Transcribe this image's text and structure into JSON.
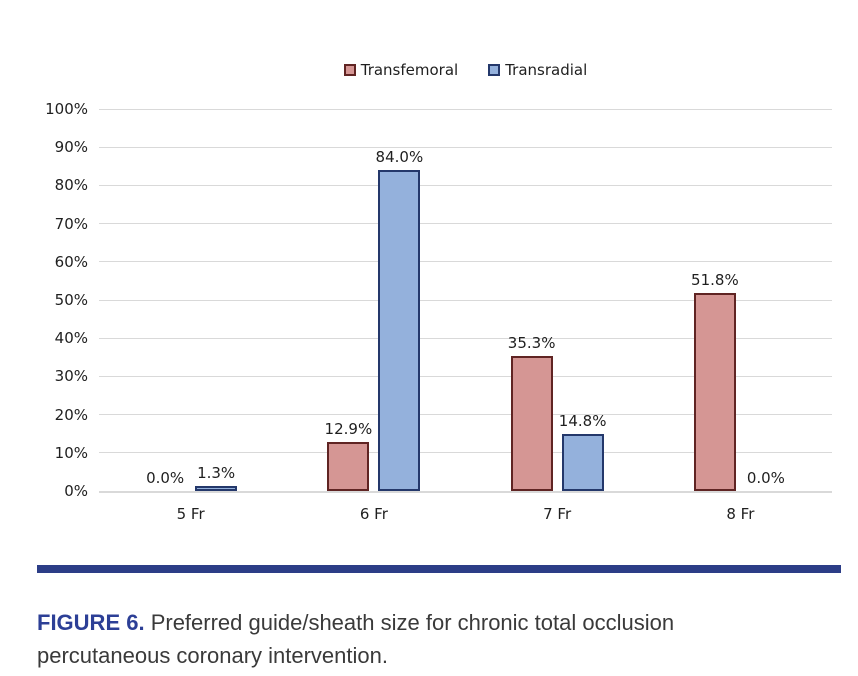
{
  "figure": {
    "caption_label": "FIGURE 6.",
    "caption_text": " Preferred guide/sheath size for chronic total occlusion percutaneous coronary intervention."
  },
  "chart_data": {
    "type": "bar",
    "title": "",
    "xlabel": "",
    "ylabel": "",
    "categories": [
      "5 Fr",
      "6 Fr",
      "7 Fr",
      "8 Fr"
    ],
    "series": [
      {
        "name": "Transfemoral",
        "values": [
          0.0,
          12.9,
          35.3,
          51.8
        ],
        "fill": "#d59694",
        "border": "#602423"
      },
      {
        "name": "Transradial",
        "values": [
          1.3,
          84.0,
          14.8,
          0.0
        ],
        "fill": "#94b1dc",
        "border": "#24386b"
      }
    ],
    "data_labels": [
      [
        "0.0%",
        "12.9%",
        "35.3%",
        "51.8%"
      ],
      [
        "1.3%",
        "84.0%",
        "14.8%",
        "0.0%"
      ]
    ],
    "y_ticks": [
      "100%",
      "90%",
      "80%",
      "70%",
      "60%",
      "50%",
      "40%",
      "30%",
      "20%",
      "10%",
      "0%"
    ],
    "ylim": [
      0,
      100
    ],
    "grid": true,
    "gridline_color": "#d9d9d9",
    "legend_position": "top"
  },
  "colors": {
    "divider": "#2c3d87",
    "caption_label": "#2c3f96",
    "chart_text": "#1f1f1f"
  }
}
